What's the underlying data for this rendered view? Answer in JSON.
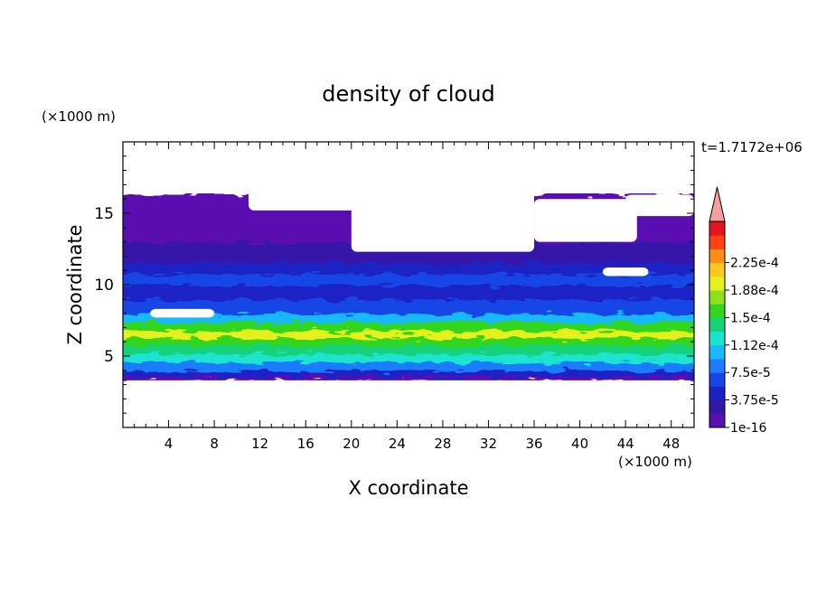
{
  "chart_data": {
    "type": "heatmap",
    "title": "density of cloud",
    "xlabel": "X coordinate",
    "ylabel": "Z coordinate",
    "x_unit": "(×1000 m)",
    "y_unit": "(×1000 m)",
    "time_label": "t=1.7172e+06",
    "xlim": [
      0,
      50
    ],
    "ylim": [
      0,
      20
    ],
    "x_ticks": [
      4,
      8,
      12,
      16,
      20,
      24,
      28,
      32,
      36,
      40,
      44,
      48
    ],
    "y_ticks": [
      5,
      10,
      15
    ],
    "colorbar": {
      "levels": [
        "1e-16",
        "3.75e-5",
        "7.5e-5",
        "1.12e-4",
        "1.5e-4",
        "1.88e-4",
        "2.25e-4"
      ],
      "colors": [
        "#5a0fb0",
        "#3517a8",
        "#1a22c4",
        "#1846e6",
        "#1f7bff",
        "#19b8ff",
        "#1ae4d0",
        "#18d27a",
        "#33d61e",
        "#8fe01a",
        "#e6f01a",
        "#ffc81e",
        "#ff8c14",
        "#ff4414",
        "#e6141e"
      ],
      "extend_color": "#f5a0a0"
    },
    "profile": {
      "z": [
        3.3,
        3.6,
        4.0,
        4.6,
        5.2,
        5.8,
        6.3,
        6.8,
        7.4,
        8.0,
        9.0,
        10.0,
        10.8,
        11.6,
        13.0,
        14.5,
        15.3,
        16.3
      ],
      "level_index": [
        0,
        2,
        4,
        6,
        7,
        8,
        10,
        8,
        5,
        3,
        2,
        3,
        2,
        1,
        0,
        0,
        0,
        0
      ]
    },
    "gaps": [
      {
        "x": [
          0,
          50
        ],
        "z": [
          0,
          3.3
        ]
      },
      {
        "x": [
          0,
          50
        ],
        "z": [
          16.6,
          20
        ]
      },
      {
        "x": [
          11,
          21
        ],
        "z": [
          15.2,
          19
        ]
      },
      {
        "x": [
          20,
          36
        ],
        "z": [
          12.3,
          19
        ]
      },
      {
        "x": [
          36,
          45
        ],
        "z": [
          13.0,
          16.0
        ]
      },
      {
        "x": [
          44,
          50
        ],
        "z": [
          14.8,
          16.3
        ]
      },
      {
        "x": [
          2.4,
          8.0
        ],
        "z": [
          7.7,
          8.3
        ]
      },
      {
        "x": [
          42,
          46
        ],
        "z": [
          10.6,
          11.2
        ]
      }
    ]
  }
}
